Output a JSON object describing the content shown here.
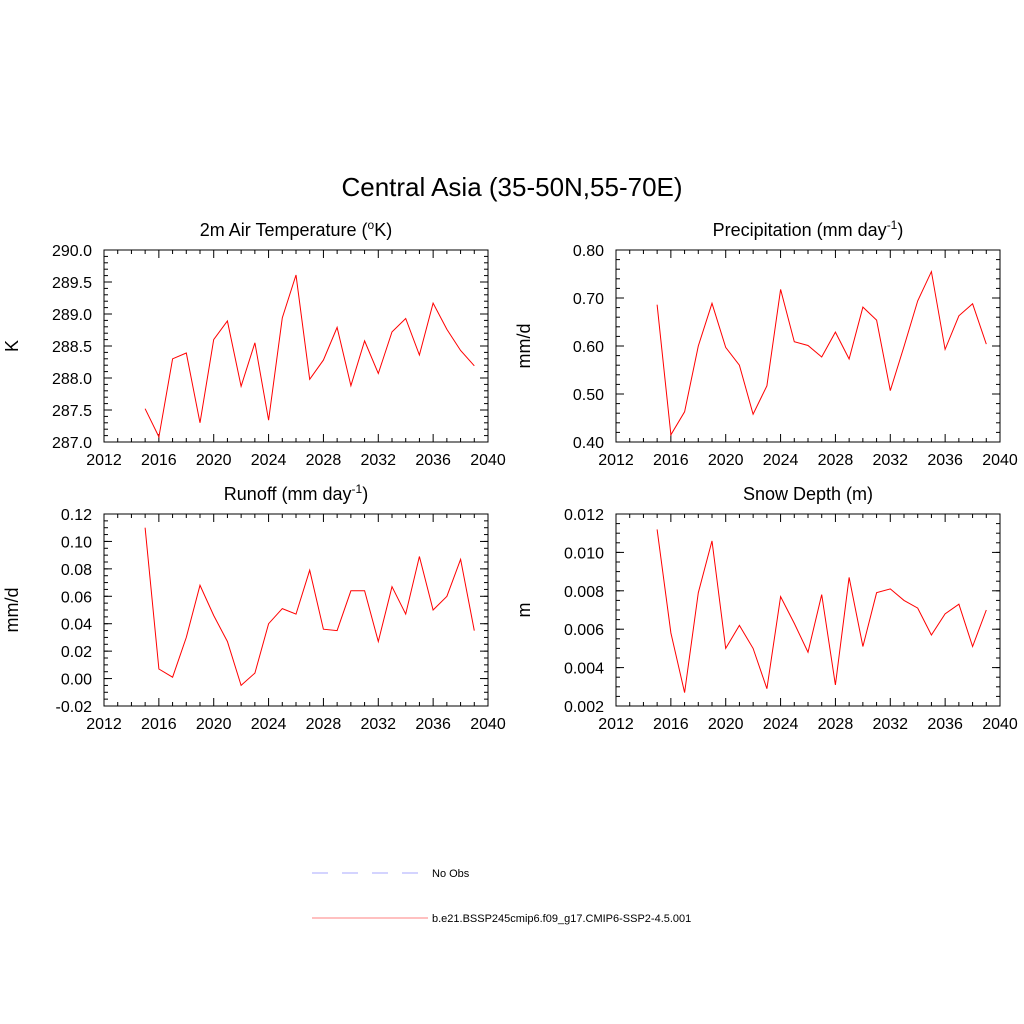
{
  "figure": {
    "title": "Central Asia (35-50N,55-70E)"
  },
  "series_color": "#ff0000",
  "chart_data": [
    {
      "id": "temp",
      "type": "line",
      "title_main": "2m Air Temperature (",
      "title_sup": "o",
      "title_tail": "K)",
      "ylabel": "K",
      "xlim": [
        2012,
        2040
      ],
      "ylim": [
        287.0,
        290.0
      ],
      "xticks": [
        2012,
        2016,
        2020,
        2024,
        2028,
        2032,
        2036,
        2040
      ],
      "xtick_labels": [
        "2012",
        "2016",
        "2020",
        "2024",
        "2028",
        "2032",
        "2036",
        "2040"
      ],
      "yticks": [
        287.0,
        287.5,
        288.0,
        288.5,
        289.0,
        289.5,
        290.0
      ],
      "ytick_labels": [
        "287.0",
        "287.5",
        "288.0",
        "288.5",
        "289.0",
        "289.5",
        "290.0"
      ],
      "yminor": 0.1,
      "x": [
        2015,
        2016,
        2017,
        2018,
        2019,
        2020,
        2021,
        2022,
        2023,
        2024,
        2025,
        2026,
        2027,
        2028,
        2029,
        2030,
        2031,
        2032,
        2033,
        2034,
        2035,
        2036,
        2037,
        2038,
        2039
      ],
      "series": [
        {
          "values": [
            287.52,
            287.08,
            288.3,
            288.39,
            287.3,
            288.6,
            288.89,
            287.87,
            288.55,
            287.34,
            288.94,
            289.61,
            287.98,
            288.28,
            288.79,
            287.88,
            288.58,
            288.07,
            288.72,
            288.93,
            288.36,
            289.17,
            288.76,
            288.43,
            288.19
          ]
        }
      ]
    },
    {
      "id": "precip",
      "type": "line",
      "title_main": "Precipitation (mm day",
      "title_sup": "-1",
      "title_tail": ")",
      "ylabel": "mm/d",
      "xlim": [
        2012,
        2040
      ],
      "ylim": [
        0.4,
        0.8
      ],
      "xticks": [
        2012,
        2016,
        2020,
        2024,
        2028,
        2032,
        2036,
        2040
      ],
      "xtick_labels": [
        "2012",
        "2016",
        "2020",
        "2024",
        "2028",
        "2032",
        "2036",
        "2040"
      ],
      "yticks": [
        0.4,
        0.5,
        0.6,
        0.7,
        0.8
      ],
      "ytick_labels": [
        "0.40",
        "0.50",
        "0.60",
        "0.70",
        "0.80"
      ],
      "yminor": 0.02,
      "x": [
        2015,
        2016,
        2017,
        2018,
        2019,
        2020,
        2021,
        2022,
        2023,
        2024,
        2025,
        2026,
        2027,
        2028,
        2029,
        2030,
        2031,
        2032,
        2033,
        2034,
        2035,
        2036,
        2037,
        2038,
        2039
      ],
      "series": [
        {
          "values": [
            0.686,
            0.415,
            0.463,
            0.6,
            0.689,
            0.597,
            0.56,
            0.458,
            0.517,
            0.718,
            0.609,
            0.601,
            0.577,
            0.629,
            0.573,
            0.681,
            0.654,
            0.507,
            0.599,
            0.694,
            0.755,
            0.593,
            0.663,
            0.688,
            0.604
          ]
        }
      ]
    },
    {
      "id": "runoff",
      "type": "line",
      "title_main": "Runoff (mm day",
      "title_sup": "-1",
      "title_tail": ")",
      "ylabel": "mm/d",
      "xlim": [
        2012,
        2040
      ],
      "ylim": [
        -0.02,
        0.12
      ],
      "xticks": [
        2012,
        2016,
        2020,
        2024,
        2028,
        2032,
        2036,
        2040
      ],
      "xtick_labels": [
        "2012",
        "2016",
        "2020",
        "2024",
        "2028",
        "2032",
        "2036",
        "2040"
      ],
      "yticks": [
        -0.02,
        0.0,
        0.02,
        0.04,
        0.06,
        0.08,
        0.1,
        0.12
      ],
      "ytick_labels": [
        "-0.02",
        "0.00",
        "0.02",
        "0.04",
        "0.06",
        "0.08",
        "0.10",
        "0.12"
      ],
      "yminor": 0.005,
      "x": [
        2015,
        2016,
        2017,
        2018,
        2019,
        2020,
        2021,
        2022,
        2023,
        2024,
        2025,
        2026,
        2027,
        2028,
        2029,
        2030,
        2031,
        2032,
        2033,
        2034,
        2035,
        2036,
        2037,
        2038,
        2039
      ],
      "series": [
        {
          "values": [
            0.11,
            0.007,
            0.001,
            0.03,
            0.068,
            0.046,
            0.027,
            -0.005,
            0.004,
            0.04,
            0.051,
            0.047,
            0.079,
            0.036,
            0.035,
            0.064,
            0.064,
            0.027,
            0.067,
            0.047,
            0.089,
            0.05,
            0.06,
            0.087,
            0.035
          ]
        }
      ]
    },
    {
      "id": "snow",
      "type": "line",
      "title_main": "Snow Depth (m)",
      "title_sup": "",
      "title_tail": "",
      "ylabel": "m",
      "xlim": [
        2012,
        2040
      ],
      "ylim": [
        0.002,
        0.012
      ],
      "xticks": [
        2012,
        2016,
        2020,
        2024,
        2028,
        2032,
        2036,
        2040
      ],
      "xtick_labels": [
        "2012",
        "2016",
        "2020",
        "2024",
        "2028",
        "2032",
        "2036",
        "2040"
      ],
      "yticks": [
        0.002,
        0.004,
        0.006,
        0.008,
        0.01,
        0.012
      ],
      "ytick_labels": [
        "0.002",
        "0.004",
        "0.006",
        "0.008",
        "0.010",
        "0.012"
      ],
      "yminor": 0.0005,
      "x": [
        2015,
        2016,
        2017,
        2018,
        2019,
        2020,
        2021,
        2022,
        2023,
        2024,
        2025,
        2026,
        2027,
        2028,
        2029,
        2030,
        2031,
        2032,
        2033,
        2034,
        2035,
        2036,
        2037,
        2038,
        2039
      ],
      "series": [
        {
          "values": [
            0.0112,
            0.0058,
            0.0027,
            0.0079,
            0.0106,
            0.005,
            0.0062,
            0.005,
            0.0029,
            0.0077,
            0.0063,
            0.0048,
            0.0078,
            0.0031,
            0.0087,
            0.0051,
            0.0079,
            0.0081,
            0.0075,
            0.0071,
            0.0057,
            0.0068,
            0.0073,
            0.0051,
            0.007
          ]
        }
      ]
    }
  ],
  "legend": {
    "items": [
      {
        "label": "No Obs",
        "style": "dashed",
        "color": "#aaaaff"
      },
      {
        "label": "b.e21.BSSP245cmip6.f09_g17.CMIP6-SSP2-4.5.001",
        "style": "solid",
        "color": "#ff8080"
      }
    ]
  }
}
